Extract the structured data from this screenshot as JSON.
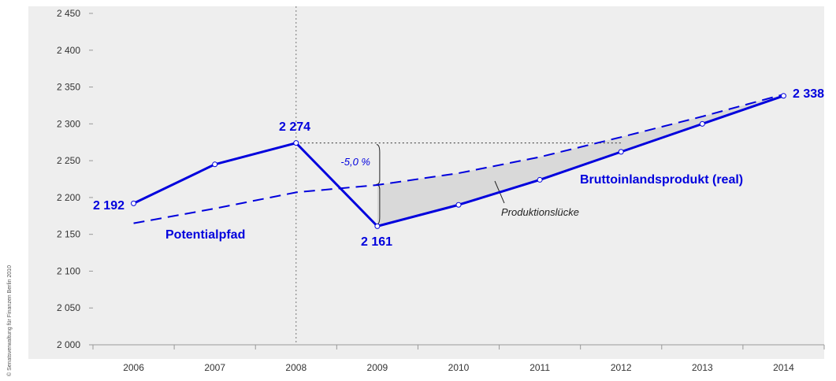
{
  "chart_data": {
    "type": "line",
    "categories": [
      "2006",
      "2007",
      "2008",
      "2009",
      "2010",
      "2011",
      "2012",
      "2013",
      "2014"
    ],
    "series": [
      {
        "name": "Bruttoinlandsprodukt (real)",
        "style": "solid",
        "values": [
          2192,
          2245,
          2274,
          2161,
          2190,
          2224,
          2262,
          2300,
          2338
        ]
      },
      {
        "name": "Potentialpfad",
        "style": "dashed",
        "values": [
          2165,
          2185,
          2207,
          2217,
          2233,
          2255,
          2282,
          2310,
          2340
        ]
      }
    ],
    "ylim": [
      2000,
      2450
    ],
    "yticks": [
      2000,
      2050,
      2100,
      2150,
      2200,
      2250,
      2300,
      2350,
      2400,
      2450
    ],
    "ytick_labels": [
      "2 000",
      "2 050",
      "2 100",
      "2 150",
      "2 200",
      "2 250",
      "2 300",
      "2 350",
      "2 400",
      "2 450"
    ],
    "value_labels": [
      {
        "text": "2 192",
        "index": 0
      },
      {
        "text": "2 274",
        "index": 2
      },
      {
        "text": "2 161",
        "index": 3
      },
      {
        "text": "2 338",
        "index": 8
      }
    ],
    "annotations": {
      "gap_label": "Produktionslücke",
      "percent_label": "-5,0 %",
      "bip_label": "Bruttoinlandsprodukt (real)",
      "potential_label": "Potentialpfad",
      "reference_year": "2008"
    },
    "grid": false,
    "colors": {
      "line": "#0000dd",
      "plot_background": "#eeeeee",
      "gap_fill": "#d9d9d9",
      "axis": "#999999"
    }
  },
  "copyright": "© Senatsverwaltung für Finanzen Berlin 2010"
}
